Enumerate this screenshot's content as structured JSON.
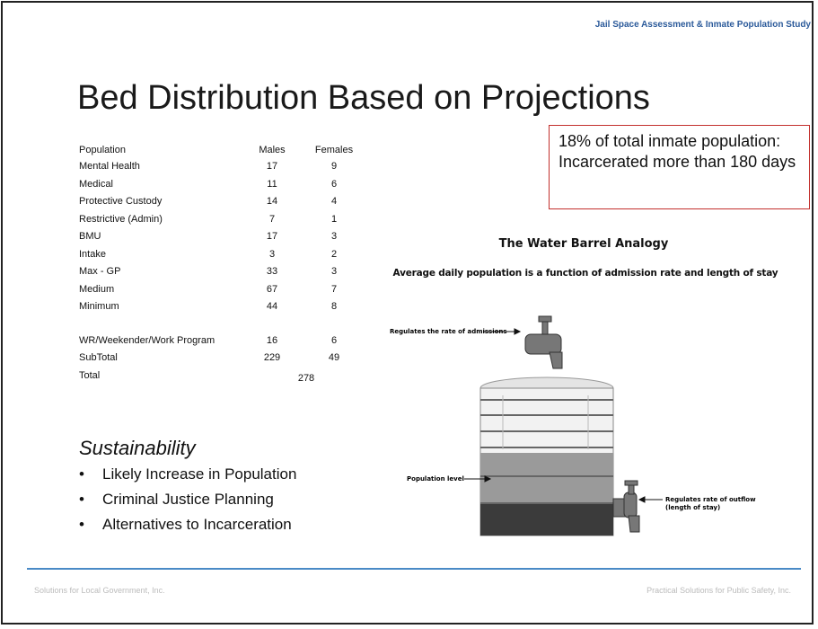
{
  "header": {
    "project": "Jail Space Assessment & Inmate Population Study"
  },
  "title": "Bed Distribution Based on Projections",
  "table": {
    "columns": [
      "Population",
      "Males",
      "Females"
    ],
    "groups": [
      [
        [
          "Mental Health",
          17,
          9
        ],
        [
          "Medical",
          11,
          6
        ],
        [
          "Protective Custody",
          14,
          4
        ],
        [
          "Restrictive (Admin)",
          7,
          1
        ],
        [
          "BMU",
          17,
          3
        ],
        [
          "Intake",
          3,
          2
        ],
        [
          "Max - GP",
          33,
          3
        ],
        [
          "Medium",
          67,
          7
        ],
        [
          "Minimum",
          44,
          8
        ]
      ],
      [
        [
          "WR/Weekender/Work Program",
          16,
          6
        ],
        [
          "SubTotal",
          229,
          49
        ]
      ]
    ],
    "total": [
      "Total",
      278
    ]
  },
  "callout": "18% of total inmate population:  Incarcerated more than 180 days",
  "diagram": {
    "title": "The Water Barrel Analogy",
    "subtitle": "Average daily population is a function of admission rate and length of stay",
    "inflow_label": "Regulates the rate of admissions",
    "level_label": "Population level",
    "outflow_label": [
      "Regulates rate of outflow",
      "(length of stay)"
    ]
  },
  "sustainability": {
    "heading": "Sustainability",
    "bullets": [
      "Likely Increase in Population",
      "Criminal Justice Planning",
      "Alternatives to Incarceration"
    ]
  },
  "footer": {
    "left": "Solutions for Local Government, Inc.",
    "right": "Practical Solutions for Public Safety, Inc."
  }
}
